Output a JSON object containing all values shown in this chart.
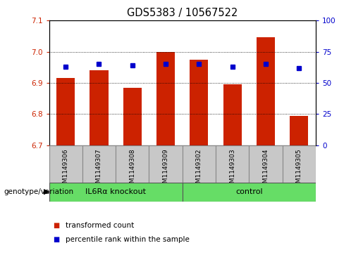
{
  "title": "GDS5383 / 10567522",
  "samples": [
    "GSM1149306",
    "GSM1149307",
    "GSM1149308",
    "GSM1149309",
    "GSM1149302",
    "GSM1149303",
    "GSM1149304",
    "GSM1149305"
  ],
  "transformed_count": [
    6.915,
    6.94,
    6.885,
    7.0,
    6.975,
    6.895,
    7.045,
    6.795
  ],
  "percentile_rank": [
    63,
    65,
    64,
    65,
    65,
    63,
    65,
    62
  ],
  "ylim_left": [
    6.7,
    7.1
  ],
  "ylim_right": [
    0,
    100
  ],
  "yticks_left": [
    6.7,
    6.8,
    6.9,
    7.0,
    7.1
  ],
  "yticks_right": [
    0,
    25,
    50,
    75,
    100
  ],
  "groups": [
    {
      "label": "IL6Rα knockout",
      "indices": [
        0,
        1,
        2,
        3
      ],
      "color": "#66DD66"
    },
    {
      "label": "control",
      "indices": [
        4,
        5,
        6,
        7
      ],
      "color": "#66DD66"
    }
  ],
  "bar_color": "#CC2200",
  "dot_color": "#0000CC",
  "bar_width": 0.55,
  "ylabel_left_color": "#CC2200",
  "ylabel_right_color": "#0000CC",
  "sample_box_color": "#C8C8C8",
  "plot_bg_color": "#FFFFFF",
  "legend_items": [
    {
      "label": "transformed count",
      "color": "#CC2200"
    },
    {
      "label": "percentile rank within the sample",
      "color": "#0000CC"
    }
  ]
}
